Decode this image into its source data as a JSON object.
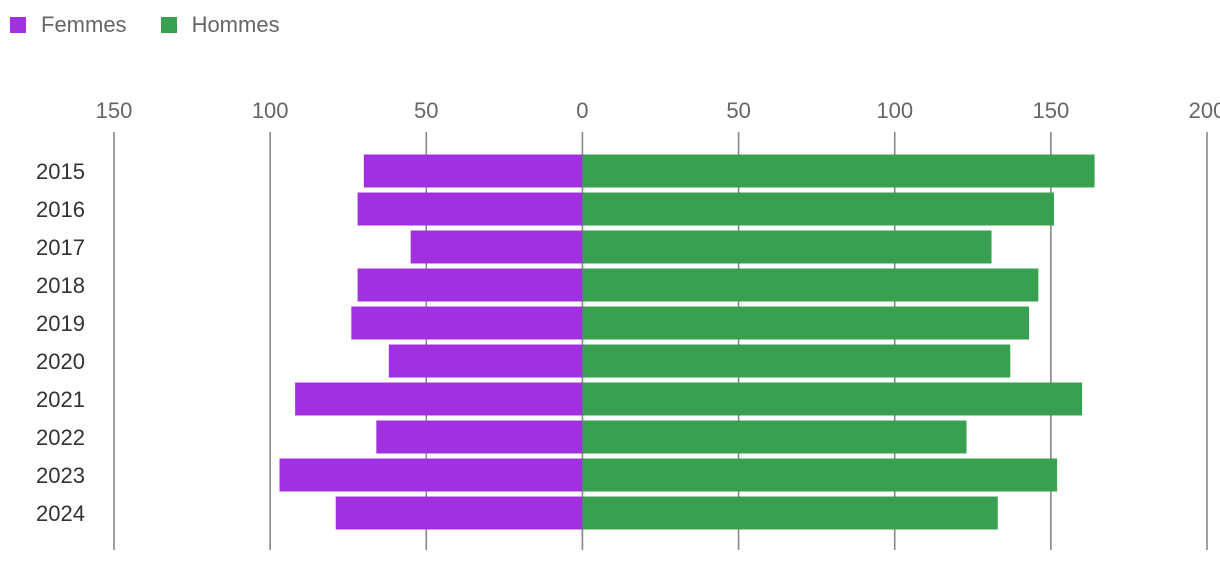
{
  "chart_data": {
    "type": "bar",
    "orientation": "horizontal",
    "layout": "diverging",
    "categories": [
      "2015",
      "2016",
      "2017",
      "2018",
      "2019",
      "2020",
      "2021",
      "2022",
      "2023",
      "2024"
    ],
    "series": [
      {
        "name": "Femmes",
        "color": "#a030e0",
        "direction": "left",
        "values": [
          70,
          72,
          55,
          72,
          74,
          62,
          92,
          66,
          97,
          79
        ]
      },
      {
        "name": "Hommes",
        "color": "#38a050",
        "direction": "right",
        "values": [
          164,
          151,
          131,
          146,
          143,
          137,
          160,
          123,
          152,
          133
        ]
      }
    ],
    "x_ticks": [
      "150",
      "100",
      "50",
      "0",
      "50",
      "100",
      "150",
      "200"
    ],
    "x_tick_values": [
      -150,
      -100,
      -50,
      0,
      50,
      100,
      150,
      200
    ],
    "xlim": [
      -150,
      200
    ],
    "grid": true,
    "legend_position": "top-left"
  }
}
